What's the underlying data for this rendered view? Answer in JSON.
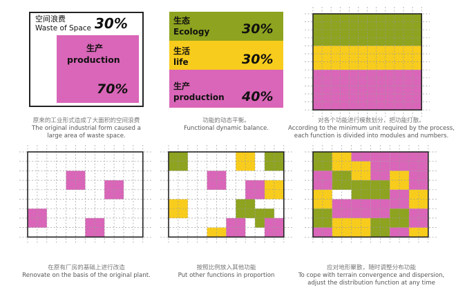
{
  "colors": {
    "magenta": "#d966b8",
    "olive": "#8ea31f",
    "yellow": "#f8cc1c",
    "white": "#ffffff",
    "border": "#222222",
    "grid_dash": "#9a9a9a"
  },
  "panel1": {
    "waste_label_cn": "空间浪费",
    "waste_label_en": "Waste of Space",
    "waste_pct": "30%",
    "production_label_cn": "生产",
    "production_label_en": "production",
    "production_pct": "70%",
    "caption_cn": "原来的工业形式造成了大面积的空间浪费",
    "caption_en_1": "The original industrial form caused a",
    "caption_en_2": "large area of waste space."
  },
  "panel2": {
    "ecology_cn": "生态",
    "ecology_en": "Ecology",
    "ecology_pct": "30%",
    "life_cn": "生活",
    "life_en": "life",
    "life_pct": "30%",
    "production_cn": "生产",
    "production_en": "production",
    "production_pct": "40%",
    "caption_cn": "功能的动态平衡。",
    "caption_en_1": "Functional dynamic balance."
  },
  "panel3": {
    "caption_cn": "对各个功能进行模数划分，把功能打散。",
    "caption_en_1": "According to the minimum unit required by the process,",
    "caption_en_2": "each function is divided into modules and numbers."
  },
  "panel4": {
    "caption_cn": "在原有厂房的基础上进行改造",
    "caption_en_1": "Renovate on the basis of the original plant."
  },
  "panel5": {
    "caption_cn": "按照比例放入其他功能",
    "caption_en_1": "Put other functions in proportion"
  },
  "panel6": {
    "caption_cn": "应对地形聚散，随时调整分布功能",
    "caption_en_1": "To cope with terrain convergence and dispersion,",
    "caption_en_2": "adjust the distribution function at any time"
  }
}
